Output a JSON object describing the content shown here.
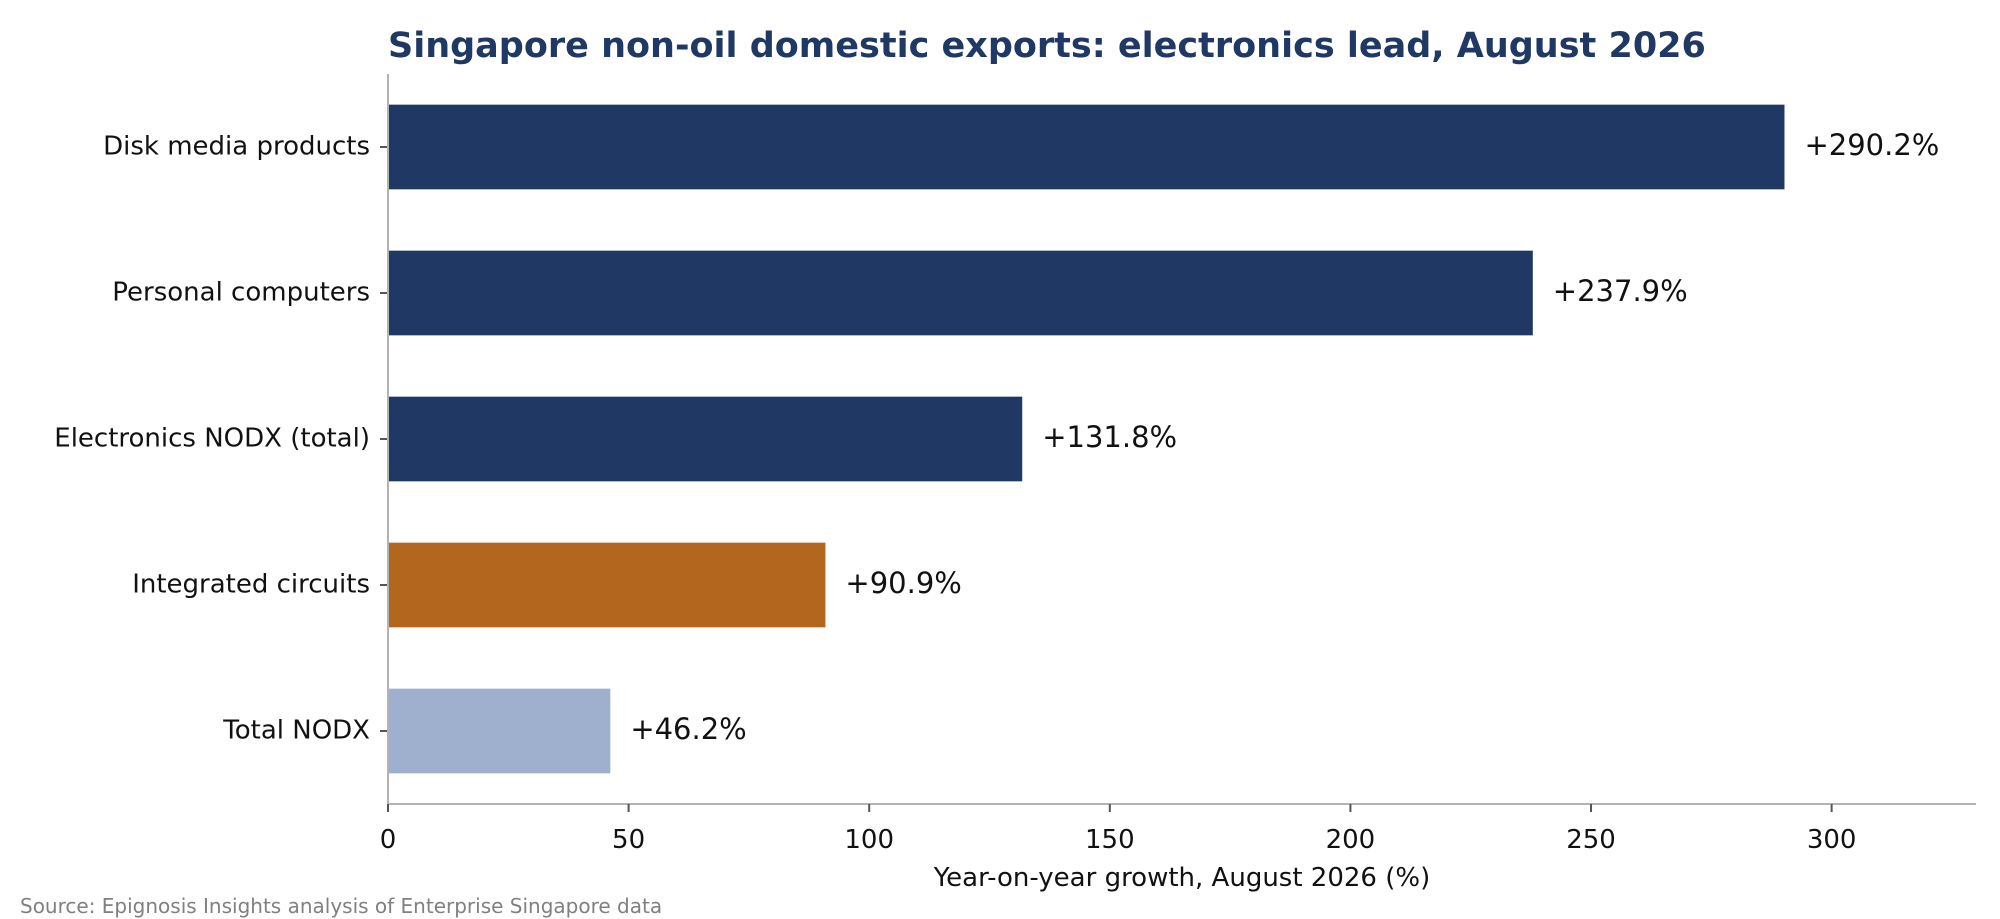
{
  "chart_data": {
    "type": "bar",
    "orientation": "horizontal",
    "title": "Singapore non-oil domestic exports: electronics lead, August 2026",
    "xlabel": "Year-on-year growth, August 2026 (%)",
    "ylabel": "",
    "xlim": [
      0,
      330
    ],
    "xticks": [
      0,
      50,
      100,
      150,
      200,
      250,
      300
    ],
    "grid": false,
    "categories": [
      "Disk media products",
      "Personal computers",
      "Electronics NODX (total)",
      "Integrated circuits",
      "Total NODX"
    ],
    "values": [
      290.2,
      237.9,
      131.8,
      90.9,
      46.2
    ],
    "data_labels": [
      "+290.2%",
      "+237.9%",
      "+131.8%",
      "+90.9%",
      "+46.2%"
    ],
    "bar_colors": [
      "#203864",
      "#203864",
      "#203864",
      "#b3661e",
      "#9eb0cd"
    ],
    "source": "Source: Epignosis Insights analysis of Enterprise Singapore data"
  },
  "colors": {
    "title": "#1f3864",
    "electronics": "#203864",
    "highlight": "#b3661e",
    "total": "#9eb0cd"
  }
}
